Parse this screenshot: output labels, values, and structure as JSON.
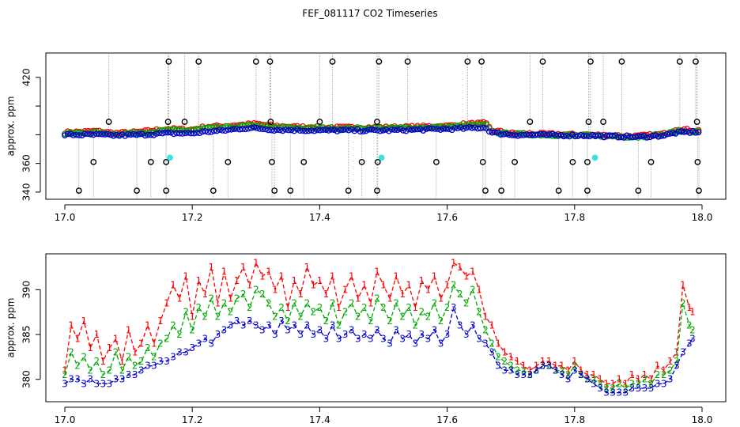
{
  "title": "FEF_081117  CO2 Timeseries",
  "chart_data": [
    {
      "type": "scatter",
      "title": "FEF_081117  CO2 Timeseries",
      "xlabel": "",
      "ylabel": "approx. ppm",
      "xlim": [
        17.0,
        18.0
      ],
      "ylim": [
        335,
        437
      ],
      "xticks": [
        17.0,
        17.2,
        17.4,
        17.6,
        17.8,
        18.0
      ],
      "xtick_labels": [
        "17.0",
        "17.2",
        "17.4",
        "17.6",
        "17.8",
        "18.0"
      ],
      "yticks": [
        340,
        360,
        380,
        400,
        420
      ],
      "ytick_labels": [
        "340",
        "360",
        "",
        "",
        "420"
      ],
      "colors": {
        "s1": "#ff0000",
        "s2": "#00aa00",
        "s3": "#0000cc",
        "outlier": "#000000",
        "flag": "#40e0e0"
      },
      "trend": {
        "x": [
          17.0,
          17.05,
          17.08,
          17.12,
          17.16,
          17.2,
          17.22,
          17.25,
          17.28,
          17.3,
          17.33,
          17.4,
          17.5,
          17.6,
          17.63,
          17.66,
          17.67,
          17.7,
          17.8,
          17.82,
          17.85,
          17.9,
          17.94,
          17.96,
          17.99
        ],
        "s1": [
          381.5,
          382.5,
          381.0,
          382.0,
          384.0,
          383.5,
          385.5,
          386.0,
          387.0,
          387.5,
          386.0,
          385.0,
          385.0,
          386.0,
          387.5,
          388.0,
          383.0,
          381.0,
          380.0,
          380.0,
          379.5,
          379.0,
          380.5,
          384.0,
          383.0
        ],
        "s2": [
          381.0,
          381.5,
          380.5,
          381.5,
          383.0,
          383.0,
          384.5,
          385.0,
          386.0,
          386.5,
          385.0,
          384.5,
          384.5,
          385.5,
          386.5,
          387.0,
          382.0,
          380.5,
          379.5,
          379.5,
          379.0,
          378.5,
          380.0,
          382.5,
          382.0
        ],
        "s3": [
          380.0,
          380.0,
          379.5,
          380.0,
          381.0,
          381.0,
          382.0,
          383.0,
          384.5,
          384.5,
          383.5,
          383.0,
          383.0,
          384.0,
          384.5,
          385.0,
          381.5,
          380.0,
          379.5,
          379.5,
          379.0,
          378.5,
          379.5,
          381.5,
          382.0
        ]
      },
      "outliers": [
        {
          "x": 17.022,
          "y": 341
        },
        {
          "x": 17.045,
          "y": 361
        },
        {
          "x": 17.069,
          "y": 389
        },
        {
          "x": 17.113,
          "y": 341
        },
        {
          "x": 17.135,
          "y": 361
        },
        {
          "x": 17.159,
          "y": 341
        },
        {
          "x": 17.159,
          "y": 361
        },
        {
          "x": 17.162,
          "y": 389
        },
        {
          "x": 17.163,
          "y": 431
        },
        {
          "x": 17.188,
          "y": 389
        },
        {
          "x": 17.21,
          "y": 431
        },
        {
          "x": 17.233,
          "y": 341
        },
        {
          "x": 17.256,
          "y": 361
        },
        {
          "x": 17.3,
          "y": 431
        },
        {
          "x": 17.322,
          "y": 431
        },
        {
          "x": 17.323,
          "y": 389
        },
        {
          "x": 17.325,
          "y": 361
        },
        {
          "x": 17.329,
          "y": 341
        },
        {
          "x": 17.354,
          "y": 341
        },
        {
          "x": 17.375,
          "y": 361
        },
        {
          "x": 17.4,
          "y": 389
        },
        {
          "x": 17.42,
          "y": 431
        },
        {
          "x": 17.445,
          "y": 341
        },
        {
          "x": 17.466,
          "y": 361
        },
        {
          "x": 17.49,
          "y": 341
        },
        {
          "x": 17.49,
          "y": 389
        },
        {
          "x": 17.491,
          "y": 361
        },
        {
          "x": 17.493,
          "y": 431
        },
        {
          "x": 17.538,
          "y": 431
        },
        {
          "x": 17.583,
          "y": 361
        },
        {
          "x": 17.632,
          "y": 431
        },
        {
          "x": 17.654,
          "y": 431
        },
        {
          "x": 17.656,
          "y": 361
        },
        {
          "x": 17.66,
          "y": 341
        },
        {
          "x": 17.685,
          "y": 341
        },
        {
          "x": 17.706,
          "y": 361
        },
        {
          "x": 17.73,
          "y": 389
        },
        {
          "x": 17.75,
          "y": 431
        },
        {
          "x": 17.775,
          "y": 341
        },
        {
          "x": 17.797,
          "y": 361
        },
        {
          "x": 17.82,
          "y": 361
        },
        {
          "x": 17.82,
          "y": 341
        },
        {
          "x": 17.822,
          "y": 389
        },
        {
          "x": 17.825,
          "y": 431
        },
        {
          "x": 17.845,
          "y": 389
        },
        {
          "x": 17.874,
          "y": 431
        },
        {
          "x": 17.9,
          "y": 341
        },
        {
          "x": 17.92,
          "y": 361
        },
        {
          "x": 17.965,
          "y": 431
        },
        {
          "x": 17.99,
          "y": 431
        },
        {
          "x": 17.992,
          "y": 389
        },
        {
          "x": 17.993,
          "y": 361
        },
        {
          "x": 17.995,
          "y": 341
        }
      ],
      "flags": [
        {
          "x": 17.165,
          "y": 364
        },
        {
          "x": 17.497,
          "y": 364
        },
        {
          "x": 17.832,
          "y": 364
        }
      ]
    },
    {
      "type": "line",
      "title": "",
      "xlabel": "",
      "ylabel": "approx. ppm",
      "xlim": [
        17.0,
        18.0
      ],
      "ylim": [
        377.5,
        394.0
      ],
      "xticks": [
        17.0,
        17.2,
        17.4,
        17.6,
        17.8,
        18.0
      ],
      "xtick_labels": [
        "17.0",
        "17.2",
        "17.4",
        "17.6",
        "17.8",
        "18.0"
      ],
      "yticks": [
        380,
        385,
        390
      ],
      "ytick_labels": [
        "380",
        "385",
        "390"
      ],
      "series": [
        {
          "name": "1",
          "color": "#ff0000",
          "x": [
            17.0,
            17.01,
            17.02,
            17.03,
            17.04,
            17.05,
            17.06,
            17.07,
            17.08,
            17.09,
            17.1,
            17.11,
            17.12,
            17.13,
            17.14,
            17.15,
            17.16,
            17.17,
            17.18,
            17.19,
            17.2,
            17.21,
            17.22,
            17.23,
            17.24,
            17.25,
            17.26,
            17.27,
            17.28,
            17.29,
            17.3,
            17.31,
            17.32,
            17.33,
            17.34,
            17.35,
            17.36,
            17.37,
            17.38,
            17.39,
            17.4,
            17.41,
            17.42,
            17.43,
            17.44,
            17.45,
            17.46,
            17.47,
            17.48,
            17.49,
            17.5,
            17.51,
            17.52,
            17.53,
            17.54,
            17.55,
            17.56,
            17.57,
            17.58,
            17.59,
            17.6,
            17.61,
            17.62,
            17.63,
            17.64,
            17.65,
            17.66,
            17.67,
            17.68,
            17.69,
            17.7,
            17.71,
            17.72,
            17.73,
            17.74,
            17.75,
            17.76,
            17.77,
            17.78,
            17.79,
            17.8,
            17.81,
            17.82,
            17.83,
            17.84,
            17.85,
            17.86,
            17.87,
            17.88,
            17.89,
            17.9,
            17.91,
            17.92,
            17.93,
            17.94,
            17.95,
            17.96,
            17.97,
            17.98,
            17.985
          ],
          "values": [
            381.0,
            386.0,
            384.5,
            386.5,
            383.5,
            385.0,
            382.0,
            383.5,
            384.5,
            382.0,
            385.5,
            383.0,
            384.0,
            386.0,
            384.0,
            386.5,
            388.5,
            390.5,
            389.0,
            391.5,
            387.0,
            391.0,
            389.5,
            392.5,
            388.5,
            392.0,
            389.0,
            391.0,
            392.5,
            390.5,
            393.0,
            391.5,
            392.0,
            390.0,
            391.5,
            388.0,
            391.0,
            389.5,
            392.5,
            390.5,
            391.0,
            389.5,
            391.5,
            388.0,
            390.0,
            391.5,
            389.0,
            390.5,
            388.5,
            392.0,
            390.5,
            389.0,
            391.5,
            389.5,
            390.5,
            388.0,
            391.0,
            390.0,
            391.5,
            389.0,
            390.5,
            393.0,
            392.5,
            391.5,
            392.0,
            390.0,
            387.0,
            386.0,
            384.0,
            383.0,
            382.5,
            382.0,
            381.5,
            381.0,
            381.5,
            382.0,
            382.0,
            381.5,
            381.5,
            381.0,
            382.0,
            381.0,
            380.5,
            380.5,
            380.0,
            379.5,
            379.5,
            380.0,
            379.5,
            380.5,
            380.0,
            380.5,
            380.0,
            381.5,
            381.0,
            382.0,
            383.0,
            390.5,
            388.0,
            387.5
          ]
        },
        {
          "name": "2",
          "color": "#00aa00",
          "x": [
            17.0,
            17.01,
            17.02,
            17.03,
            17.04,
            17.05,
            17.06,
            17.07,
            17.08,
            17.09,
            17.1,
            17.11,
            17.12,
            17.13,
            17.14,
            17.15,
            17.16,
            17.17,
            17.18,
            17.19,
            17.2,
            17.21,
            17.22,
            17.23,
            17.24,
            17.25,
            17.26,
            17.27,
            17.28,
            17.29,
            17.3,
            17.31,
            17.32,
            17.33,
            17.34,
            17.35,
            17.36,
            17.37,
            17.38,
            17.39,
            17.4,
            17.41,
            17.42,
            17.43,
            17.44,
            17.45,
            17.46,
            17.47,
            17.48,
            17.49,
            17.5,
            17.51,
            17.52,
            17.53,
            17.54,
            17.55,
            17.56,
            17.57,
            17.58,
            17.59,
            17.6,
            17.61,
            17.62,
            17.63,
            17.64,
            17.65,
            17.66,
            17.67,
            17.68,
            17.69,
            17.7,
            17.71,
            17.72,
            17.73,
            17.74,
            17.75,
            17.76,
            17.77,
            17.78,
            17.79,
            17.8,
            17.81,
            17.82,
            17.83,
            17.84,
            17.85,
            17.86,
            17.87,
            17.88,
            17.89,
            17.9,
            17.91,
            17.92,
            17.93,
            17.94,
            17.95,
            17.96,
            17.97,
            17.98,
            17.985
          ],
          "values": [
            380.5,
            383.0,
            381.5,
            382.5,
            381.0,
            382.0,
            380.5,
            381.0,
            383.0,
            381.0,
            382.5,
            381.5,
            382.0,
            383.5,
            382.5,
            384.0,
            384.5,
            386.0,
            385.0,
            387.5,
            385.5,
            388.0,
            387.0,
            389.0,
            387.0,
            388.5,
            387.5,
            389.0,
            389.5,
            388.0,
            390.0,
            389.5,
            388.5,
            387.0,
            388.0,
            386.5,
            388.5,
            387.0,
            388.5,
            387.5,
            388.0,
            386.5,
            388.5,
            386.0,
            387.5,
            388.5,
            387.0,
            388.0,
            386.5,
            389.0,
            388.0,
            386.5,
            388.5,
            387.0,
            388.0,
            386.0,
            387.5,
            387.0,
            388.5,
            386.5,
            388.0,
            390.5,
            389.5,
            388.5,
            390.0,
            387.5,
            385.5,
            384.0,
            382.5,
            382.0,
            381.5,
            381.0,
            381.0,
            380.5,
            381.0,
            381.5,
            381.5,
            381.0,
            381.0,
            380.5,
            381.5,
            380.5,
            380.0,
            380.0,
            379.5,
            379.0,
            379.0,
            379.5,
            379.0,
            379.5,
            379.5,
            380.0,
            379.5,
            380.5,
            380.5,
            381.0,
            382.0,
            388.5,
            386.0,
            385.5
          ]
        },
        {
          "name": "3",
          "color": "#0000cc",
          "x": [
            17.0,
            17.01,
            17.02,
            17.03,
            17.04,
            17.05,
            17.06,
            17.07,
            17.08,
            17.09,
            17.1,
            17.11,
            17.12,
            17.13,
            17.14,
            17.15,
            17.16,
            17.17,
            17.18,
            17.19,
            17.2,
            17.21,
            17.22,
            17.23,
            17.24,
            17.25,
            17.26,
            17.27,
            17.28,
            17.29,
            17.3,
            17.31,
            17.32,
            17.33,
            17.34,
            17.35,
            17.36,
            17.37,
            17.38,
            17.39,
            17.4,
            17.41,
            17.42,
            17.43,
            17.44,
            17.45,
            17.46,
            17.47,
            17.48,
            17.49,
            17.5,
            17.51,
            17.52,
            17.53,
            17.54,
            17.55,
            17.56,
            17.57,
            17.58,
            17.59,
            17.6,
            17.61,
            17.62,
            17.63,
            17.64,
            17.65,
            17.66,
            17.67,
            17.68,
            17.69,
            17.7,
            17.71,
            17.72,
            17.73,
            17.74,
            17.75,
            17.76,
            17.77,
            17.78,
            17.79,
            17.8,
            17.81,
            17.82,
            17.83,
            17.84,
            17.85,
            17.86,
            17.87,
            17.88,
            17.89,
            17.9,
            17.91,
            17.92,
            17.93,
            17.94,
            17.95,
            17.96,
            17.97,
            17.98,
            17.985
          ],
          "values": [
            379.5,
            380.0,
            380.0,
            379.5,
            380.0,
            379.5,
            379.5,
            379.5,
            380.0,
            380.0,
            380.5,
            380.5,
            381.0,
            381.5,
            381.5,
            382.0,
            382.0,
            382.5,
            383.0,
            383.0,
            383.5,
            384.0,
            384.5,
            384.0,
            385.0,
            385.5,
            386.0,
            386.5,
            386.0,
            386.5,
            386.0,
            385.5,
            386.0,
            385.0,
            386.5,
            385.5,
            386.0,
            385.0,
            386.0,
            385.0,
            385.5,
            384.5,
            386.0,
            384.5,
            385.0,
            385.5,
            384.5,
            385.0,
            384.5,
            385.5,
            384.5,
            384.0,
            385.5,
            384.5,
            385.0,
            384.0,
            385.0,
            384.5,
            385.5,
            384.0,
            385.0,
            388.0,
            386.0,
            385.0,
            386.0,
            384.5,
            384.0,
            383.0,
            381.5,
            381.0,
            381.0,
            380.5,
            380.5,
            380.5,
            381.0,
            381.5,
            381.5,
            381.0,
            380.5,
            380.0,
            381.0,
            380.5,
            380.0,
            379.5,
            379.0,
            378.5,
            378.5,
            378.5,
            378.5,
            379.0,
            379.0,
            379.0,
            379.0,
            379.5,
            379.5,
            380.0,
            381.5,
            383.0,
            384.0,
            384.5
          ]
        }
      ]
    }
  ]
}
